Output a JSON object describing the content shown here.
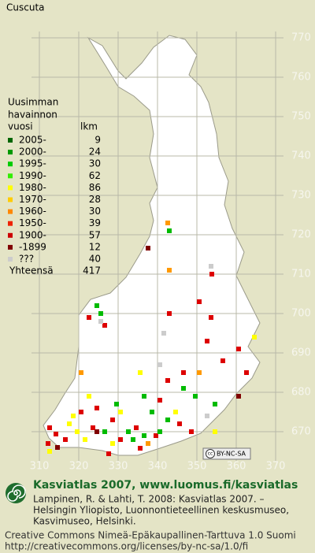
{
  "header": {
    "title": "Cuscuta"
  },
  "legend": {
    "heading": [
      "Uusimman",
      "havainnon",
      "vuosi"
    ],
    "count_heading": "lkm",
    "items": [
      {
        "label": "2005-",
        "count": 9,
        "color": "#006600"
      },
      {
        "label": "2000-",
        "count": 24,
        "color": "#009900"
      },
      {
        "label": "1995-",
        "count": 30,
        "color": "#00cc00"
      },
      {
        "label": "1990-",
        "count": 62,
        "color": "#33ee00"
      },
      {
        "label": "1980-",
        "count": 86,
        "color": "#ffff00"
      },
      {
        "label": "1970-",
        "count": 28,
        "color": "#ffcc00"
      },
      {
        "label": "1960-",
        "count": 30,
        "color": "#ff8800"
      },
      {
        "label": "1950-",
        "count": 39,
        "color": "#ee2200"
      },
      {
        "label": "1900-",
        "count": 57,
        "color": "#cc0000"
      },
      {
        "label": "-1899",
        "count": 12,
        "color": "#800000"
      },
      {
        "label": "???",
        "count": 40,
        "color": "#cccccc"
      }
    ],
    "total": {
      "label": "Yhteensä",
      "count": 417
    }
  },
  "map": {
    "y_labels": [
      770,
      760,
      750,
      740,
      730,
      720,
      710,
      700,
      690,
      680,
      670
    ],
    "x_labels": [
      310,
      320,
      330,
      340,
      350,
      360,
      370
    ]
  },
  "license_badge": {
    "cc": "cc",
    "text": "BY-NC-SA"
  },
  "footer": {
    "title": "Kasviatlas 2007, www.luomus.fi/kasviatlas",
    "citation": [
      "Lampinen, R. & Lahti, T. 2008: Kasviatlas 2007. –",
      "Helsingin Yliopisto, Luonnontieteellinen keskusmuseo,",
      "Kasvimuseo, Helsinki."
    ],
    "license": [
      "Creative Commons Nimeä-Epäkaupallinen-Tarttuva 1.0 Suomi",
      "http://creativecommons.org/licenses/by-nc-sa/1.0/fi"
    ]
  }
}
